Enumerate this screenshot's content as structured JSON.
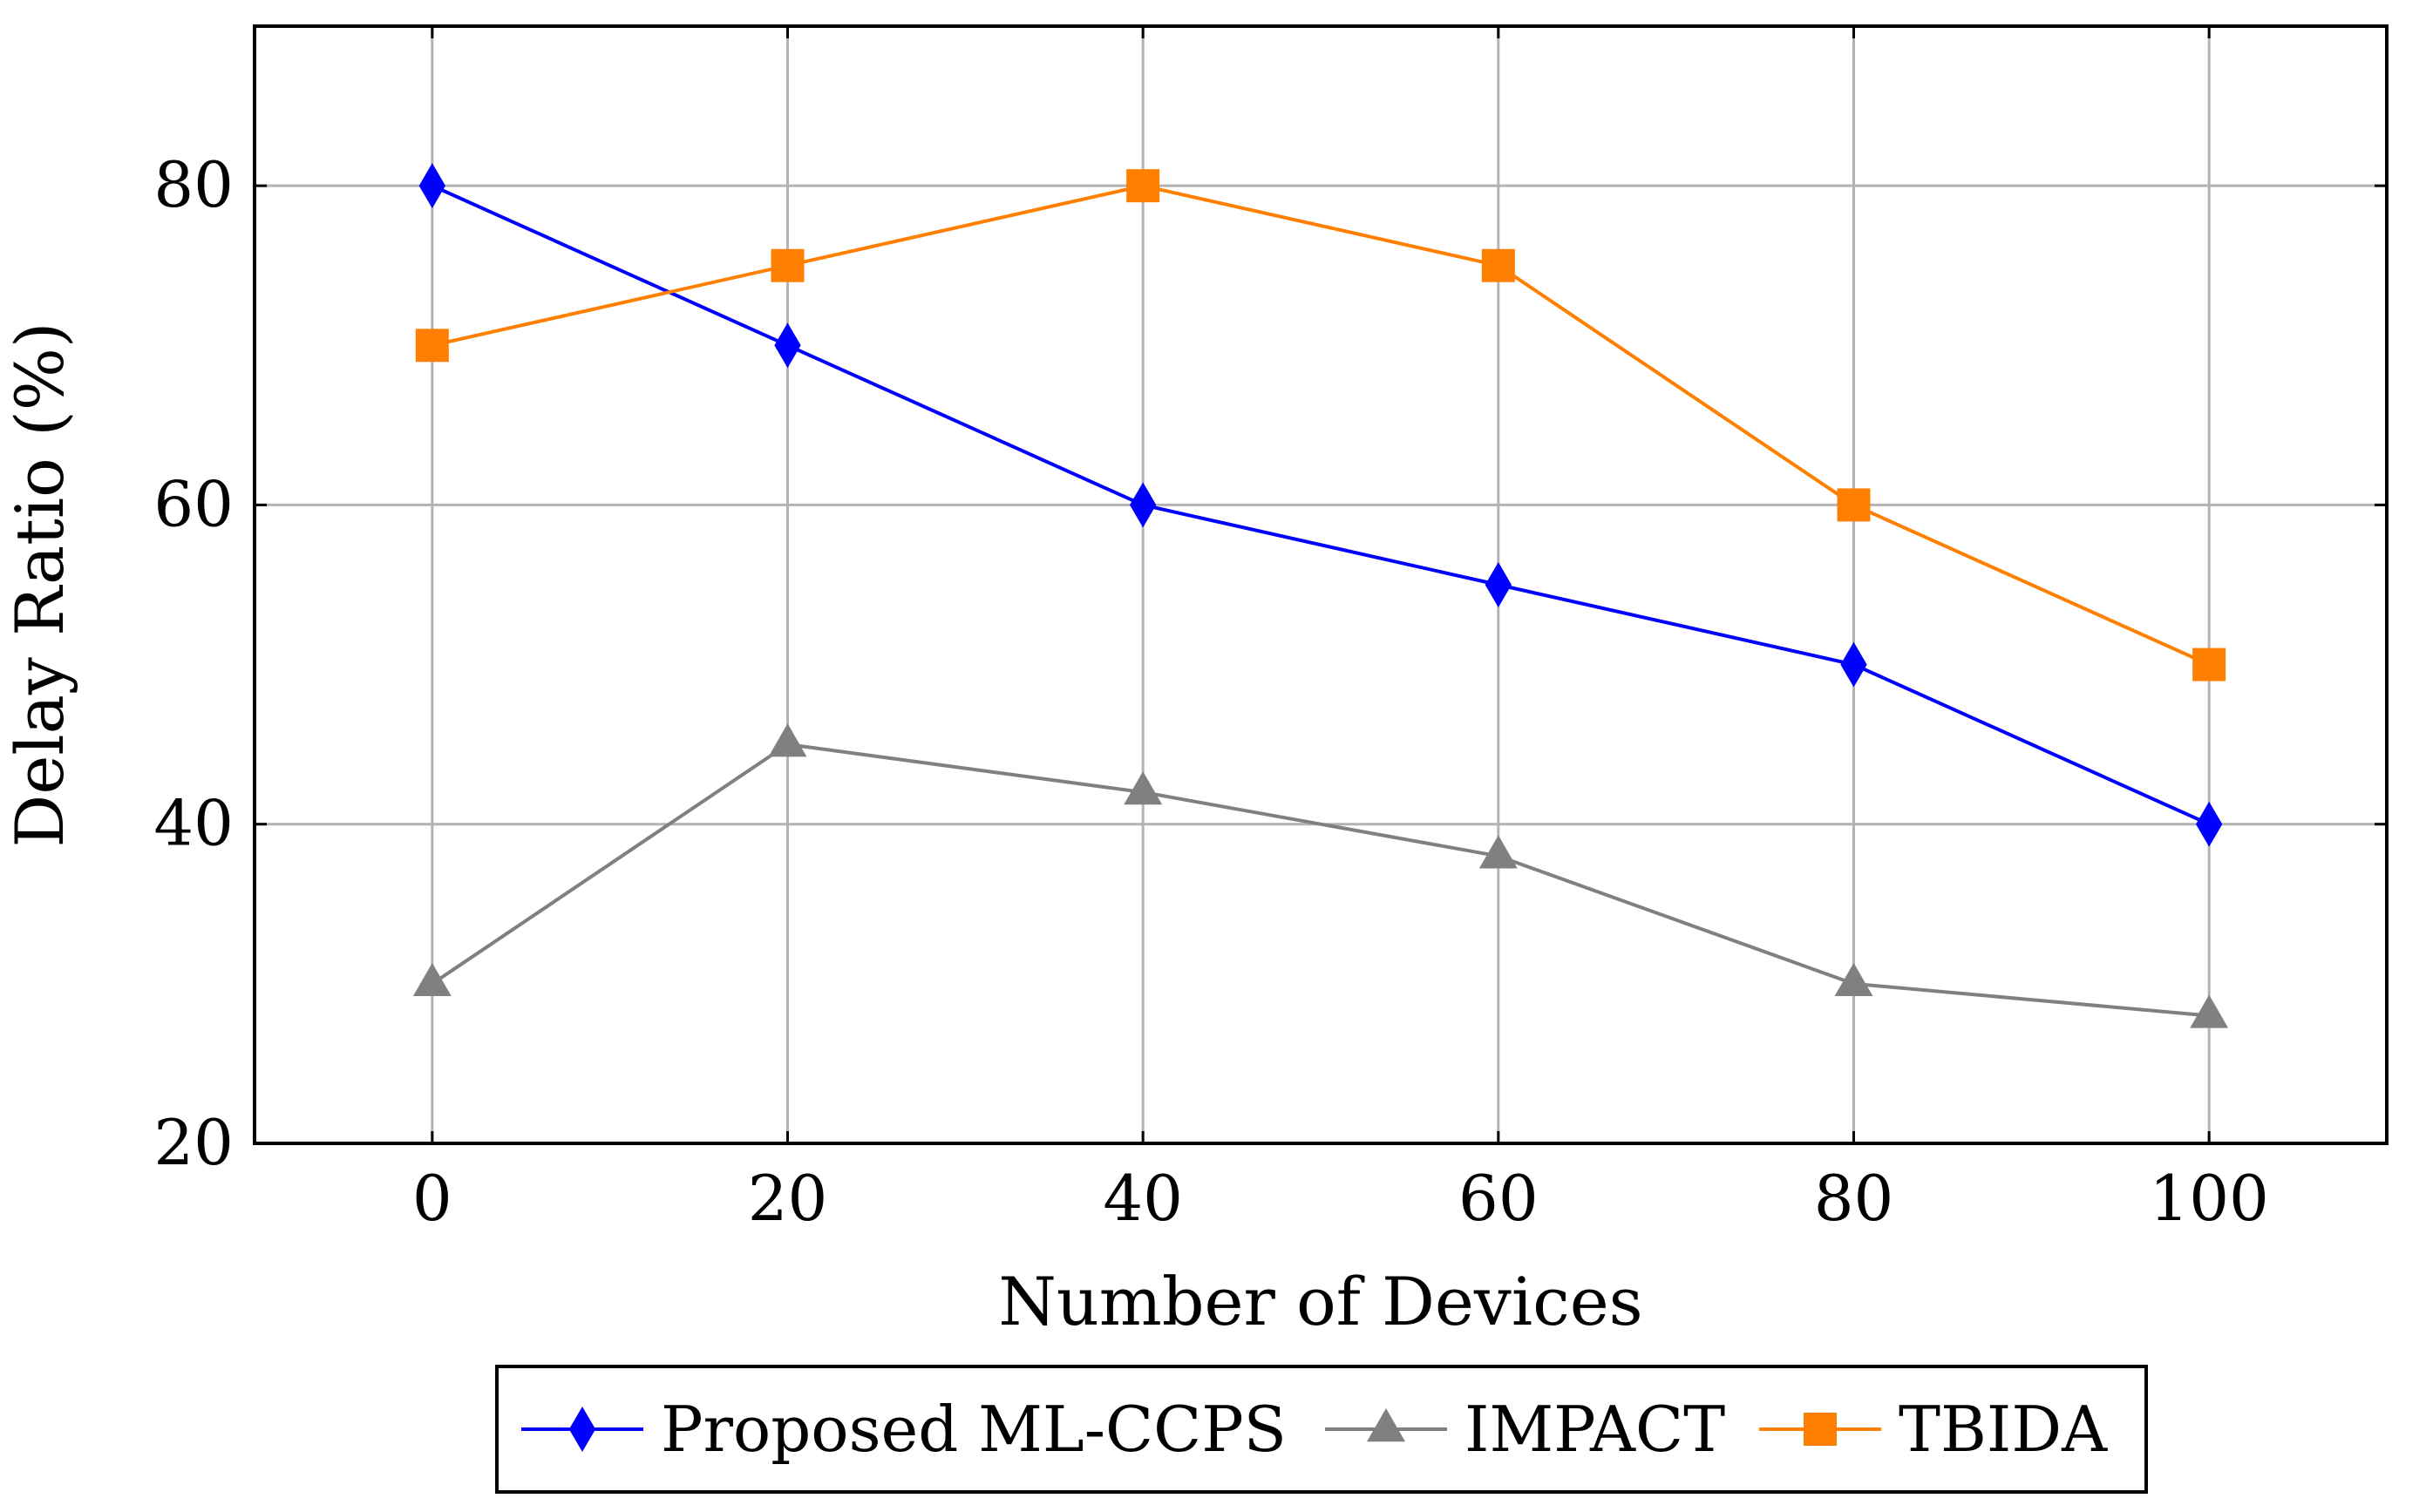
{
  "chart_data": {
    "type": "line",
    "title": "",
    "xlabel": "Number of Devices",
    "ylabel": "Delay Ratio (%)",
    "x": [
      0,
      20,
      40,
      60,
      80,
      100
    ],
    "xlim": [
      -10,
      110
    ],
    "ylim": [
      20,
      90
    ],
    "xticks": [
      0,
      20,
      40,
      60,
      80,
      100
    ],
    "yticks": [
      20,
      40,
      60,
      80
    ],
    "xtick_labels": [
      "0",
      "20",
      "40",
      "60",
      "80",
      "100"
    ],
    "ytick_labels": [
      "20",
      "40",
      "60",
      "80"
    ],
    "grid": true,
    "legend_position": "bottom-outside",
    "series": [
      {
        "name": "Proposed ML-CCPS",
        "values": [
          80,
          70,
          60,
          55,
          50,
          40
        ],
        "color": "#0000ff",
        "marker": "diamond"
      },
      {
        "name": "IMPACT",
        "values": [
          30,
          45,
          42,
          38,
          30,
          28
        ],
        "color": "#808080",
        "marker": "triangle"
      },
      {
        "name": "TBIDA",
        "values": [
          70,
          75,
          80,
          75,
          60,
          50
        ],
        "color": "#ff8000",
        "marker": "square"
      }
    ]
  }
}
